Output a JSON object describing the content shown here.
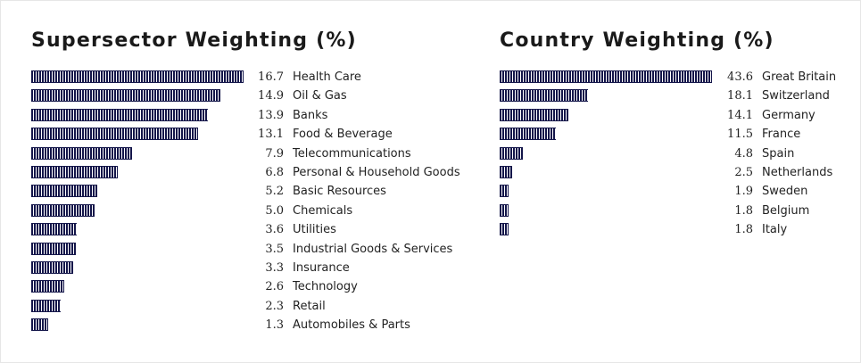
{
  "chart_data": [
    {
      "type": "bar",
      "orientation": "horizontal",
      "title": "Supersector Weighting (%)",
      "categories": [
        "Health Care",
        "Oil & Gas",
        "Banks",
        "Food & Beverage",
        "Telecommunications",
        "Personal & Household Goods",
        "Basic Resources",
        "Chemicals",
        "Utilities",
        "Industrial Goods & Services",
        "Insurance",
        "Technology",
        "Retail",
        "Automobiles & Parts"
      ],
      "values": [
        16.7,
        14.9,
        13.9,
        13.1,
        7.9,
        6.8,
        5.2,
        5.0,
        3.6,
        3.5,
        3.3,
        2.6,
        2.3,
        1.3
      ],
      "value_labels": [
        "16.7",
        "14.9",
        "13.9",
        "13.1",
        "7.9",
        "6.8",
        "5.2",
        "5.0",
        "3.6",
        "3.5",
        "3.3",
        "2.6",
        "2.3",
        "1.3"
      ],
      "bar_color": "#14164a",
      "grid": false
    },
    {
      "type": "bar",
      "orientation": "horizontal",
      "title": "Country Weighting (%)",
      "categories": [
        "Great Britain",
        "Switzerland",
        "Germany",
        "France",
        "Spain",
        "Netherlands",
        "Sweden",
        "Belgium",
        "Italy"
      ],
      "values": [
        43.6,
        18.1,
        14.1,
        11.5,
        4.8,
        2.5,
        1.9,
        1.8,
        1.8
      ],
      "value_labels": [
        "43.6",
        "18.1",
        "14.1",
        "11.5",
        "4.8",
        "2.5",
        "1.9",
        "1.8",
        "1.8"
      ],
      "bar_color": "#14164a",
      "grid": false
    }
  ]
}
